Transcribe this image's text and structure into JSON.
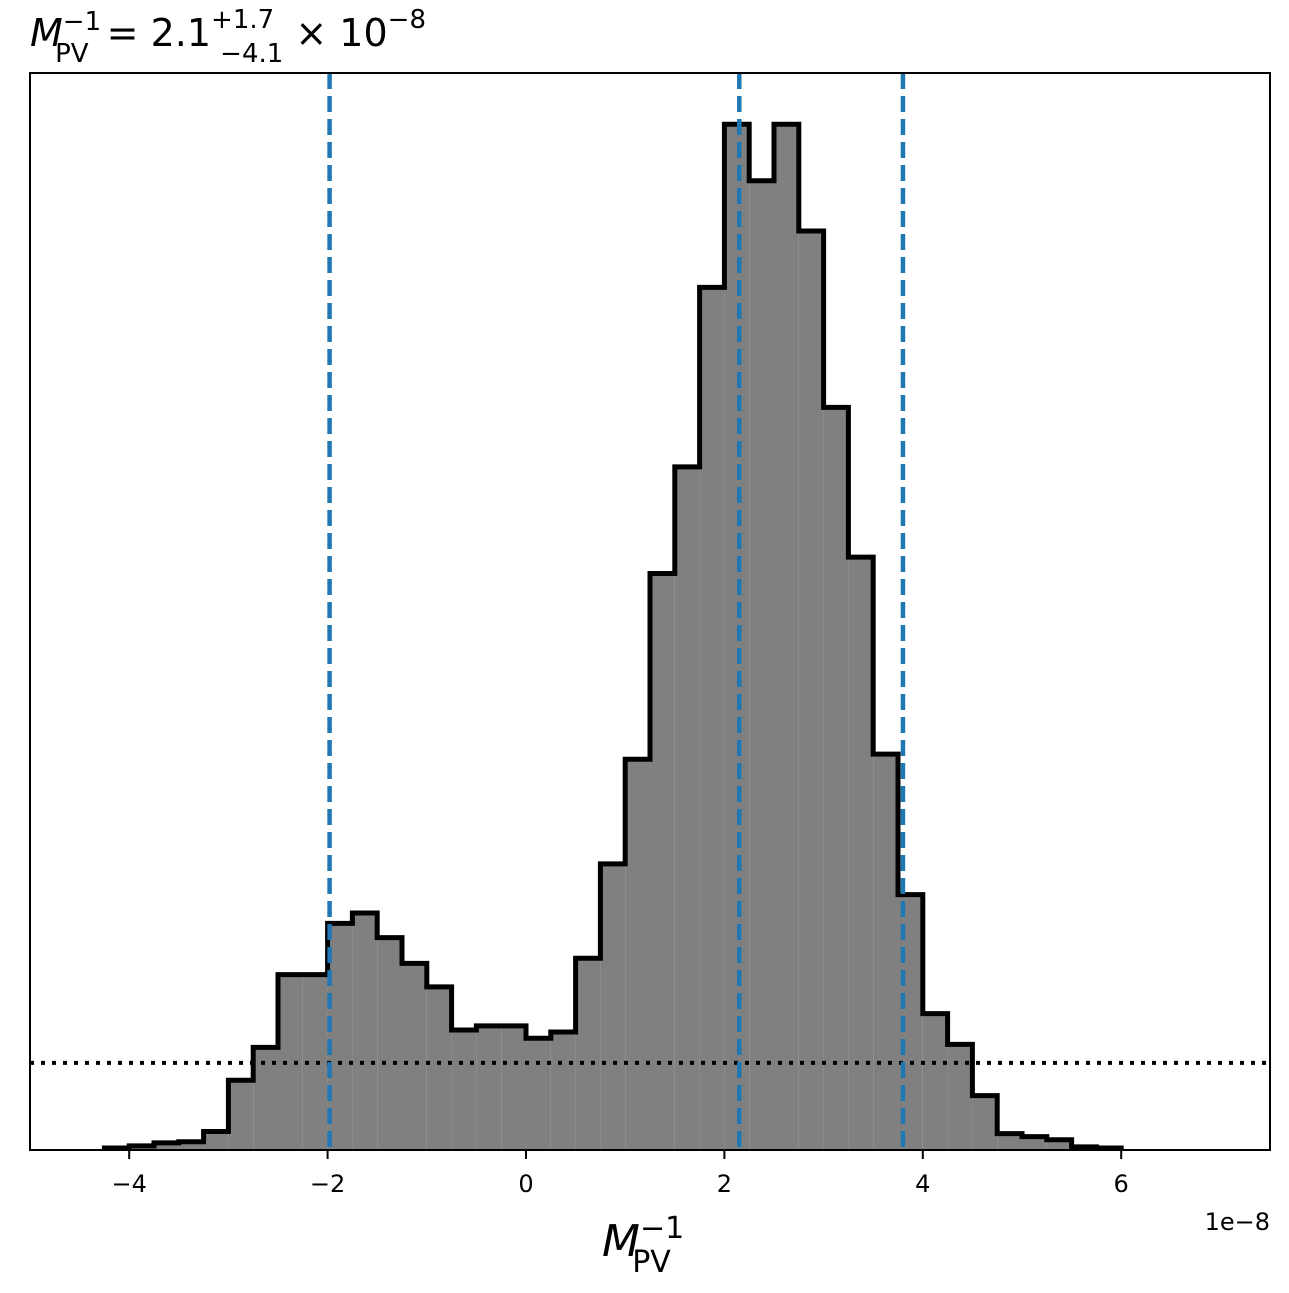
{
  "chart_data": {
    "type": "bar",
    "title": {
      "symbol": "M",
      "sub": "PV",
      "sup": "−1",
      "equals": " = 2.1",
      "err_plus": "+1.7",
      "err_minus": "−4.1",
      "times": " × 10",
      "exp": "−8"
    },
    "xlabel": {
      "symbol": "M",
      "sub": "PV",
      "sup": "−1"
    },
    "ylabel": "",
    "offset_text": "1e−8",
    "xlim": [
      -5.0,
      7.5
    ],
    "ylim": [
      0,
      1.05
    ],
    "bin_width": 0.25,
    "bins_start": -4.25,
    "bin_heights": [
      0.002,
      0.004,
      0.007,
      0.008,
      0.018,
      0.068,
      0.1,
      0.171,
      0.171,
      0.221,
      0.231,
      0.207,
      0.182,
      0.159,
      0.117,
      0.121,
      0.121,
      0.109,
      0.115,
      0.187,
      0.279,
      0.381,
      0.562,
      0.666,
      0.841,
      1.0,
      0.945,
      1.0,
      0.896,
      0.724,
      0.578,
      0.386,
      0.249,
      0.133,
      0.103,
      0.053,
      0.016,
      0.013,
      0.01,
      0.003,
      0.002
    ],
    "quantile_lines": {
      "values": [
        -1.98,
        2.15,
        3.8
      ],
      "color": "#1f77b4",
      "style": "dashed"
    },
    "prior_line": {
      "level": 0.085,
      "style": "dotted",
      "color": "#000000"
    },
    "xticks": [
      -4,
      -2,
      0,
      2,
      4,
      6
    ],
    "xtick_labels": [
      "−4",
      "−2",
      "0",
      "2",
      "4",
      "6"
    ],
    "fill_color": "#808080",
    "edge_color": "#000000",
    "grid": false,
    "legend": "none"
  }
}
